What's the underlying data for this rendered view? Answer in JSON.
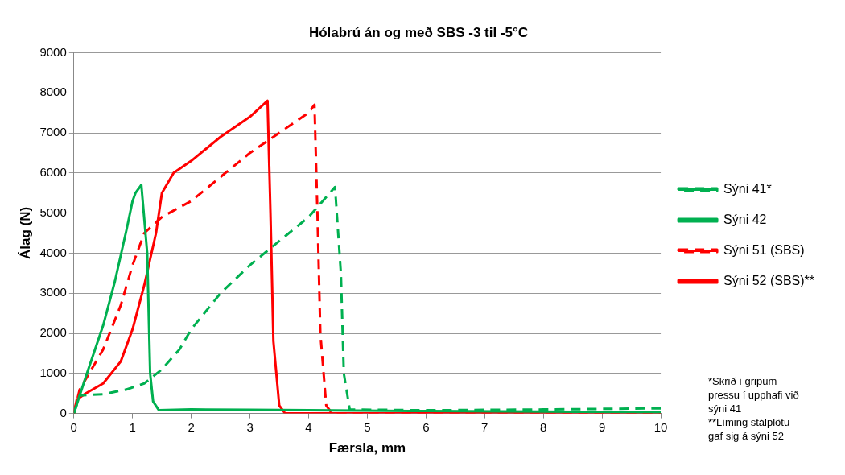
{
  "chart_data": {
    "type": "line",
    "title": "Hólabrú án og með SBS -3 til -5°C",
    "xlabel": "Færsla, mm",
    "ylabel": "Álag (N)",
    "xlim": [
      0,
      10
    ],
    "xticks": [
      0,
      1,
      2,
      3,
      4,
      5,
      6,
      7,
      8,
      9,
      10
    ],
    "ylim": [
      0,
      9000
    ],
    "yticks": [
      0,
      1000,
      2000,
      3000,
      4000,
      5000,
      6000,
      7000,
      8000,
      9000
    ],
    "grid": "y",
    "legend": "right",
    "marker": "none",
    "series": [
      {
        "name": "Sýni 41*",
        "color": "#00b050",
        "line_style": "dashed",
        "x": [
          0,
          0.1,
          0.5,
          0.9,
          1.2,
          1.5,
          1.8,
          2.0,
          2.5,
          3.0,
          3.5,
          4.0,
          4.45,
          4.55,
          4.6,
          4.7,
          6,
          8,
          10
        ],
        "values": [
          0,
          450,
          480,
          600,
          750,
          1100,
          1600,
          2100,
          3000,
          3700,
          4300,
          4900,
          5650,
          3500,
          1000,
          100,
          80,
          100,
          130
        ]
      },
      {
        "name": "Sýni 42",
        "color": "#00b050",
        "line_style": "solid",
        "x": [
          0,
          0.2,
          0.5,
          0.7,
          0.9,
          1.0,
          1.05,
          1.15,
          1.25,
          1.3,
          1.35,
          1.45,
          2,
          3,
          4,
          6,
          10
        ],
        "values": [
          0,
          900,
          2200,
          3300,
          4600,
          5300,
          5500,
          5700,
          4000,
          1000,
          300,
          80,
          100,
          90,
          80,
          60,
          30
        ]
      },
      {
        "name": "Sýni 51 (SBS)",
        "color": "#ff0000",
        "line_style": "dashed",
        "x": [
          0,
          0.1,
          0.5,
          0.8,
          1.0,
          1.2,
          1.5,
          2,
          2.5,
          3,
          3.5,
          4.0,
          4.1,
          4.15,
          4.2,
          4.3,
          4.4,
          10
        ],
        "values": [
          0,
          600,
          1600,
          2700,
          3700,
          4500,
          4900,
          5300,
          5900,
          6500,
          7000,
          7500,
          7700,
          5000,
          2000,
          200,
          0,
          0
        ]
      },
      {
        "name": "Sýni 52 (SBS)**",
        "color": "#ff0000",
        "line_style": "solid",
        "x": [
          0,
          0.05,
          0.2,
          0.5,
          0.8,
          1.0,
          1.2,
          1.4,
          1.5,
          1.7,
          2.0,
          2.5,
          3.0,
          3.3,
          3.35,
          3.4,
          3.5,
          3.6,
          10
        ],
        "values": [
          0,
          350,
          500,
          750,
          1300,
          2100,
          3200,
          4500,
          5500,
          6000,
          6300,
          6900,
          7400,
          7800,
          5000,
          1800,
          200,
          0,
          0
        ]
      }
    ],
    "annotations": [
      "*Skrið í gripum pressu í upphafi við sýni 41",
      "**Líming stálplötu gaf sig á sýni 52"
    ]
  }
}
